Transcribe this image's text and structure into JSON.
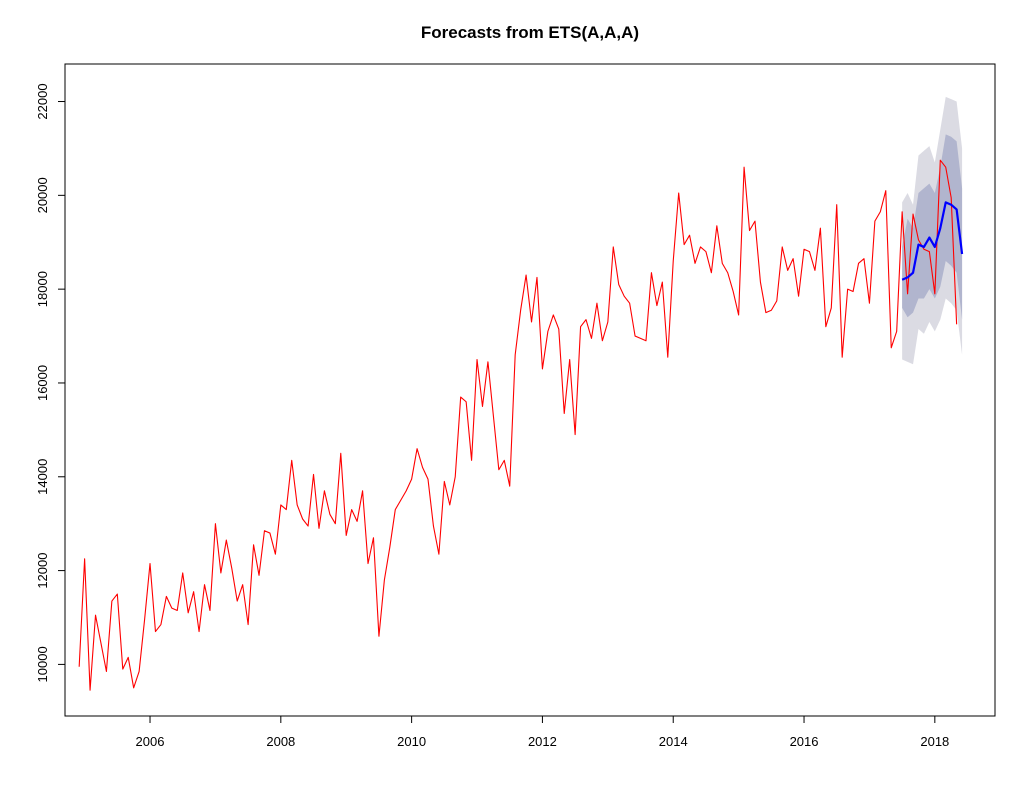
{
  "chart_data": {
    "type": "line",
    "title": "Forecasts from ETS(A,A,A)",
    "xlabel": "",
    "ylabel": "",
    "xlim": [
      2004.7,
      2018.92
    ],
    "ylim": [
      8900,
      22800
    ],
    "x_ticks": [
      2006,
      2008,
      2010,
      2012,
      2014,
      2016,
      2018
    ],
    "x_tick_labels": [
      "2006",
      "2008",
      "2010",
      "2012",
      "2014",
      "2016",
      "2018"
    ],
    "y_ticks": [
      10000,
      12000,
      14000,
      16000,
      18000,
      20000,
      22000
    ],
    "y_tick_labels": [
      "10000",
      "12000",
      "14000",
      "16000",
      "18000",
      "20000",
      "22000"
    ],
    "colors": {
      "actual": "#ff0000",
      "forecast": "#0000ff",
      "band80": "#b1b5ce",
      "band95": "#dbdbe3",
      "axis": "#000000"
    },
    "series": [
      {
        "role": "observed",
        "color": "#ff0000",
        "x_start": 2004.9167,
        "step": 0.083333,
        "values": [
          9950,
          12250,
          9450,
          11050,
          10450,
          9850,
          11350,
          11500,
          9900,
          10150,
          9500,
          9850,
          10950,
          12150,
          10700,
          10850,
          11450,
          11200,
          11150,
          11950,
          11100,
          11550,
          10700,
          11700,
          11150,
          13000,
          11950,
          12650,
          12050,
          11350,
          11700,
          10850,
          12550,
          11900,
          12850,
          12800,
          12350,
          13400,
          13300,
          14350,
          13400,
          13100,
          12950,
          14050,
          12900,
          13700,
          13200,
          13000,
          14500,
          12750,
          13300,
          13050,
          13700,
          12150,
          12700,
          10600,
          11800,
          12500,
          13300,
          13500,
          13700,
          13950,
          14600,
          14200,
          13950,
          12950,
          12350,
          13900,
          13400,
          14000,
          15700,
          15600,
          14350,
          16500,
          15500,
          16450,
          15300,
          14150,
          14350,
          13800,
          16600,
          17550,
          18300,
          17300,
          18250,
          16300,
          17100,
          17450,
          17150,
          15350,
          16500,
          14900,
          17200,
          17350,
          16950,
          17700,
          16900,
          17300,
          18900,
          18100,
          17850,
          17700,
          17000,
          16950,
          16900,
          18350,
          17650,
          18150,
          16550,
          18600,
          20050,
          18950,
          19150,
          18550,
          18900,
          18800,
          18350,
          19350,
          18550,
          18350,
          17950,
          17450,
          20600,
          19250,
          19450,
          18150,
          17500,
          17550,
          17750,
          18900,
          18400,
          18650,
          17850,
          18850,
          18800,
          18400,
          19300,
          17200,
          17600,
          19800,
          16550,
          18000,
          17950,
          18550,
          18650,
          17700,
          19450,
          19650,
          20100,
          16750,
          17100,
          19650,
          17900,
          19600,
          19050,
          18850,
          18800,
          17900,
          20750,
          20600,
          19950,
          17250
        ]
      },
      {
        "role": "forecast",
        "color": "#0000ff",
        "x_start": 2017.5,
        "step": 0.083333,
        "values": [
          18200,
          18250,
          18350,
          18950,
          18900,
          19100,
          18900,
          19300,
          19850,
          19800,
          19700,
          18750
        ],
        "lo80": [
          17600,
          17400,
          17500,
          17800,
          17800,
          18000,
          17800,
          18050,
          18600,
          18500,
          18350,
          17350
        ],
        "hi80": [
          18900,
          19500,
          19300,
          20050,
          20150,
          20250,
          20050,
          20600,
          21300,
          21250,
          21150,
          20150
        ],
        "lo95": [
          16500,
          16450,
          16400,
          17150,
          17050,
          17300,
          17100,
          17350,
          17800,
          17700,
          17550,
          16600
        ],
        "hi95": [
          19850,
          20050,
          19800,
          20850,
          20950,
          21050,
          20700,
          21400,
          22100,
          22050,
          22000,
          21000
        ]
      }
    ]
  }
}
